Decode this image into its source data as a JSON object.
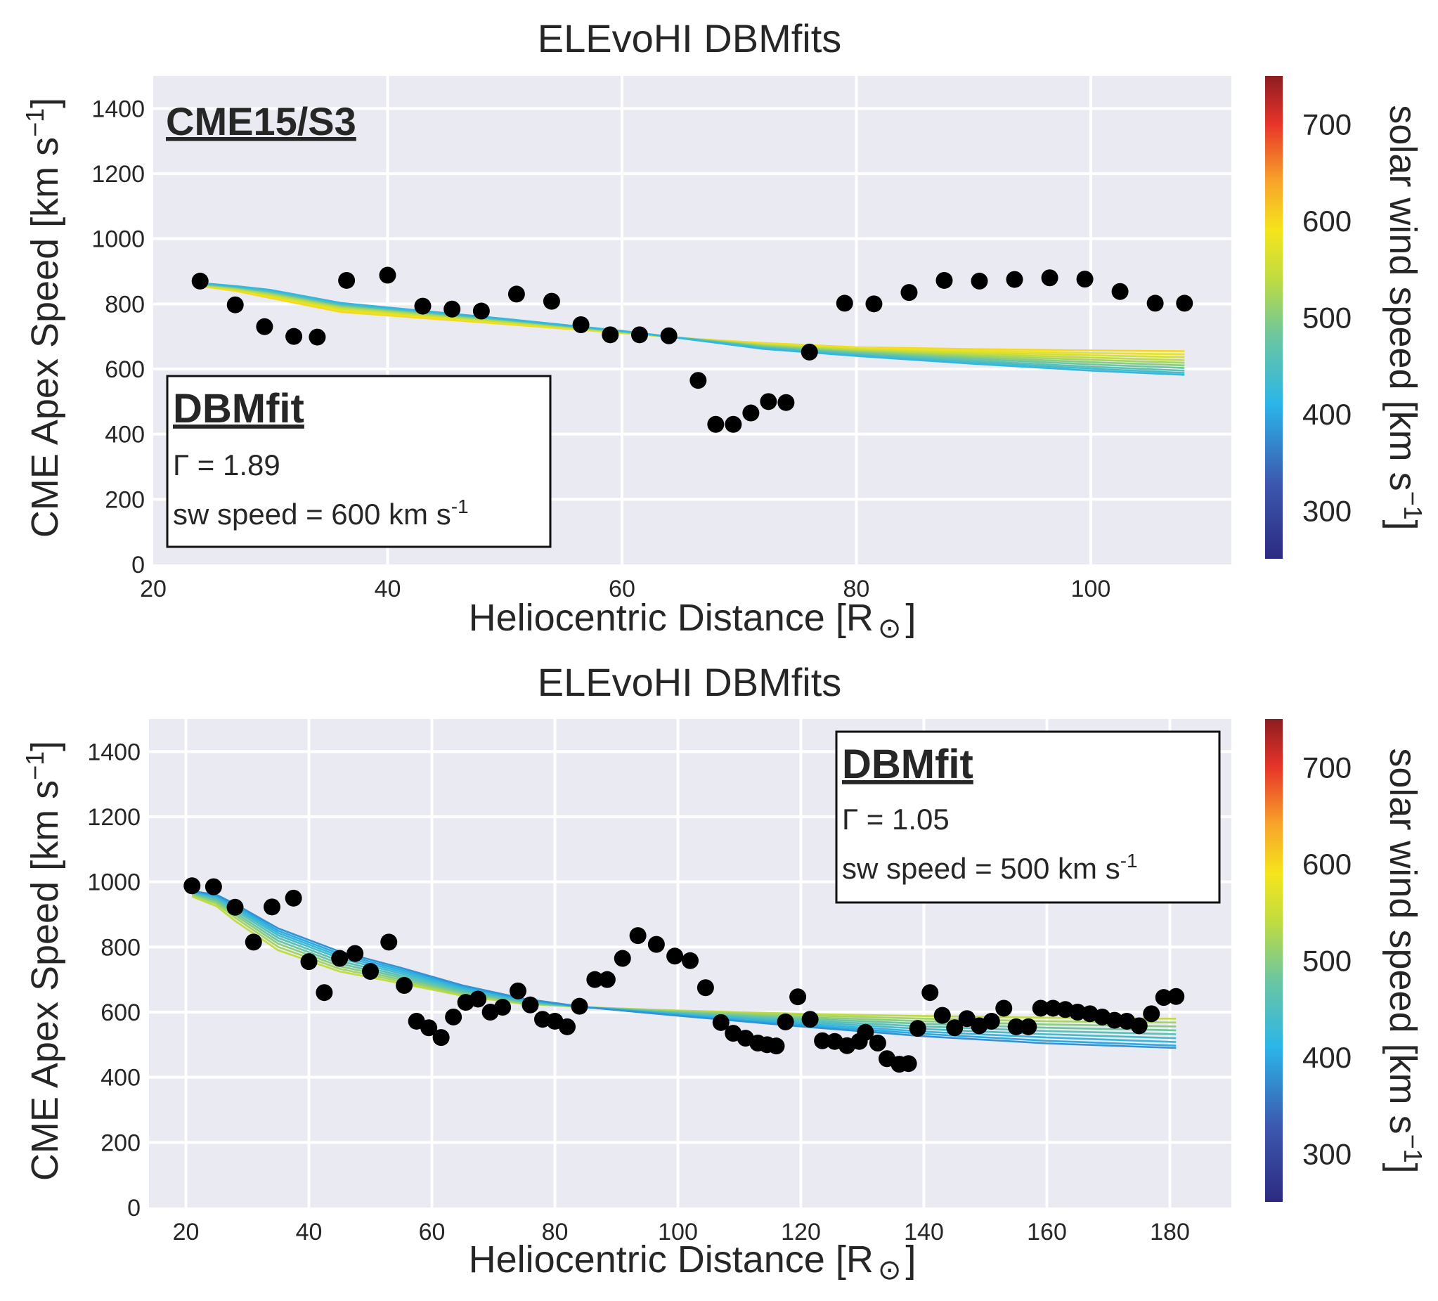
{
  "colorbar": {
    "label": "solar wind speed [km s",
    "label_sup": "−1",
    "label_end": "]",
    "range": [
      250,
      750
    ],
    "ticks": [
      300,
      400,
      500,
      600,
      700
    ]
  },
  "chart_data": [
    {
      "type": "scatter",
      "title": "ELEvoHI DBMfits",
      "xlabel": "Heliocentric Distance [R",
      "xlabel_sym": "⊙",
      "xlabel_end": "]",
      "ylabel": "CME Apex Speed [km s",
      "ylabel_sup": "−1",
      "ylabel_end": "]",
      "xlim": [
        20,
        112
      ],
      "ylim": [
        0,
        1500
      ],
      "xticks": [
        20,
        40,
        60,
        80,
        100
      ],
      "yticks": [
        0,
        200,
        400,
        600,
        800,
        1000,
        1200,
        1400
      ],
      "grid": true,
      "event_label": "CME15/S3",
      "fit_box": {
        "position": "bottom-left",
        "title": "DBMfit",
        "gamma": "Γ = 1.89",
        "sw_speed": "sw speed = 600 km s",
        "sw_speed_sup": "-1"
      },
      "points": [
        [
          24,
          870
        ],
        [
          27,
          797
        ],
        [
          29.5,
          730
        ],
        [
          32,
          700
        ],
        [
          34,
          698
        ],
        [
          36.5,
          872
        ],
        [
          40,
          888
        ],
        [
          43,
          793
        ],
        [
          45.5,
          784
        ],
        [
          48,
          778
        ],
        [
          51,
          830
        ],
        [
          54,
          808
        ],
        [
          56.5,
          736
        ],
        [
          59,
          705
        ],
        [
          61.5,
          705
        ],
        [
          64,
          702
        ],
        [
          66.5,
          565
        ],
        [
          68,
          430
        ],
        [
          69.5,
          430
        ],
        [
          71,
          465
        ],
        [
          72.5,
          500
        ],
        [
          74,
          497
        ],
        [
          76,
          652
        ],
        [
          79,
          802
        ],
        [
          81.5,
          800
        ],
        [
          84.5,
          835
        ],
        [
          87.5,
          872
        ],
        [
          90.5,
          870
        ],
        [
          93.5,
          875
        ],
        [
          96.5,
          880
        ],
        [
          99.5,
          876
        ],
        [
          102.5,
          838
        ],
        [
          105.5,
          802
        ],
        [
          108,
          802
        ]
      ],
      "fit_x": [
        24,
        27,
        30,
        36,
        50,
        60,
        66,
        72,
        80,
        90,
        100,
        108
      ],
      "fit_series": [
        {
          "sw": 600,
          "values": [
            855,
            840,
            818,
            775,
            738,
            710,
            693,
            680,
            667,
            661,
            657,
            655
          ]
        },
        {
          "sw": 580,
          "values": [
            857,
            843,
            822,
            780,
            741,
            711,
            693,
            678,
            664,
            656,
            649,
            645
          ]
        },
        {
          "sw": 560,
          "values": [
            858,
            845,
            826,
            785,
            744,
            712,
            693,
            676,
            661,
            651,
            642,
            636
          ]
        },
        {
          "sw": 540,
          "values": [
            859,
            847,
            829,
            789,
            746,
            713,
            692,
            674,
            658,
            646,
            635,
            627
          ]
        },
        {
          "sw": 520,
          "values": [
            860,
            849,
            832,
            792,
            748,
            714,
            692,
            672,
            655,
            641,
            628,
            619
          ]
        },
        {
          "sw": 500,
          "values": [
            861,
            851,
            835,
            795,
            750,
            715,
            692,
            670,
            652,
            636,
            621,
            611
          ]
        },
        {
          "sw": 480,
          "values": [
            862,
            852,
            837,
            797,
            751,
            716,
            692,
            668,
            649,
            631,
            614,
            603
          ]
        },
        {
          "sw": 460,
          "values": [
            863,
            853,
            839,
            799,
            752,
            716,
            691,
            666,
            646,
            626,
            607,
            595
          ]
        },
        {
          "sw": 440,
          "values": [
            864,
            854,
            841,
            801,
            753,
            717,
            691,
            664,
            643,
            621,
            601,
            588
          ]
        },
        {
          "sw": 420,
          "values": [
            864,
            855,
            843,
            803,
            754,
            717,
            690,
            662,
            640,
            616,
            595,
            582
          ]
        }
      ]
    },
    {
      "type": "scatter",
      "title": "ELEvoHI DBMfits",
      "xlabel": "Heliocentric Distance [R",
      "xlabel_sym": "⊙",
      "xlabel_end": "]",
      "ylabel": "CME Apex Speed [km s",
      "ylabel_sup": "−1",
      "ylabel_end": "]",
      "xlim": [
        14,
        190
      ],
      "ylim": [
        0,
        1500
      ],
      "xticks": [
        20,
        40,
        60,
        80,
        100,
        120,
        140,
        160,
        180
      ],
      "yticks": [
        0,
        200,
        400,
        600,
        800,
        1000,
        1200,
        1400
      ],
      "grid": true,
      "fit_box": {
        "position": "top-right",
        "title": "DBMfit",
        "gamma": "Γ = 1.05",
        "sw_speed": "sw speed = 500 km s",
        "sw_speed_sup": "-1"
      },
      "points": [
        [
          21,
          988
        ],
        [
          24.5,
          985
        ],
        [
          28,
          922
        ],
        [
          31,
          815
        ],
        [
          34,
          923
        ],
        [
          37.5,
          950
        ],
        [
          40,
          755
        ],
        [
          42.5,
          660
        ],
        [
          45,
          765
        ],
        [
          47.5,
          780
        ],
        [
          50,
          725
        ],
        [
          53,
          815
        ],
        [
          55.5,
          682
        ],
        [
          57.5,
          572
        ],
        [
          59.5,
          552
        ],
        [
          61.5,
          522
        ],
        [
          63.5,
          585
        ],
        [
          65.5,
          630
        ],
        [
          67.5,
          640
        ],
        [
          69.5,
          600
        ],
        [
          71.5,
          615
        ],
        [
          74,
          665
        ],
        [
          76,
          622
        ],
        [
          78,
          578
        ],
        [
          80,
          572
        ],
        [
          82,
          555
        ],
        [
          84,
          618
        ],
        [
          86.5,
          700
        ],
        [
          88.5,
          700
        ],
        [
          91,
          765
        ],
        [
          93.5,
          835
        ],
        [
          96.5,
          808
        ],
        [
          99.5,
          772
        ],
        [
          102,
          758
        ],
        [
          104.5,
          675
        ],
        [
          107,
          568
        ],
        [
          109,
          535
        ],
        [
          111,
          520
        ],
        [
          113,
          505
        ],
        [
          114.5,
          500
        ],
        [
          116,
          496
        ],
        [
          117.5,
          570
        ],
        [
          119.5,
          647
        ],
        [
          121.5,
          578
        ],
        [
          123.5,
          512
        ],
        [
          125.5,
          510
        ],
        [
          127.5,
          497
        ],
        [
          129.5,
          510
        ],
        [
          130.5,
          538
        ],
        [
          132.5,
          505
        ],
        [
          134,
          457
        ],
        [
          136,
          440
        ],
        [
          137.5,
          442
        ],
        [
          139,
          550
        ],
        [
          141,
          660
        ],
        [
          143,
          590
        ],
        [
          145,
          552
        ],
        [
          147,
          580
        ],
        [
          149,
          558
        ],
        [
          151,
          572
        ],
        [
          153,
          612
        ],
        [
          155,
          555
        ],
        [
          157,
          555
        ],
        [
          159,
          612
        ],
        [
          161,
          612
        ],
        [
          163,
          608
        ],
        [
          165,
          600
        ],
        [
          167,
          595
        ],
        [
          169,
          585
        ],
        [
          171,
          575
        ],
        [
          173,
          572
        ],
        [
          175,
          558
        ],
        [
          177,
          595
        ],
        [
          179,
          645
        ],
        [
          181,
          648
        ]
      ],
      "fit_x": [
        21,
        25,
        28,
        35,
        45,
        55,
        65,
        75,
        85,
        100,
        120,
        140,
        160,
        181
      ],
      "fit_series": [
        {
          "sw": 540,
          "values": [
            955,
            925,
            880,
            790,
            725,
            688,
            650,
            625,
            615,
            605,
            595,
            588,
            583,
            580
          ]
        },
        {
          "sw": 520,
          "values": [
            960,
            932,
            890,
            800,
            733,
            694,
            654,
            627,
            615,
            603,
            590,
            580,
            572,
            568
          ]
        },
        {
          "sw": 500,
          "values": [
            963,
            938,
            898,
            810,
            741,
            700,
            658,
            629,
            615,
            601,
            585,
            572,
            562,
            556
          ]
        },
        {
          "sw": 480,
          "values": [
            965,
            943,
            905,
            819,
            749,
            706,
            662,
            631,
            615,
            599,
            580,
            564,
            552,
            544
          ]
        },
        {
          "sw": 460,
          "values": [
            967,
            947,
            912,
            828,
            757,
            712,
            666,
            633,
            615,
            597,
            575,
            556,
            542,
            532
          ]
        },
        {
          "sw": 440,
          "values": [
            969,
            951,
            918,
            836,
            765,
            718,
            670,
            635,
            615,
            595,
            570,
            548,
            532,
            520
          ]
        },
        {
          "sw": 420,
          "values": [
            970,
            954,
            923,
            843,
            772,
            724,
            674,
            637,
            615,
            593,
            565,
            540,
            522,
            508
          ]
        },
        {
          "sw": 400,
          "values": [
            971,
            957,
            928,
            850,
            779,
            730,
            678,
            639,
            615,
            591,
            560,
            533,
            512,
            497
          ]
        },
        {
          "sw": 380,
          "values": [
            972,
            960,
            932,
            857,
            786,
            736,
            682,
            641,
            615,
            589,
            556,
            526,
            504,
            490
          ]
        }
      ]
    }
  ]
}
